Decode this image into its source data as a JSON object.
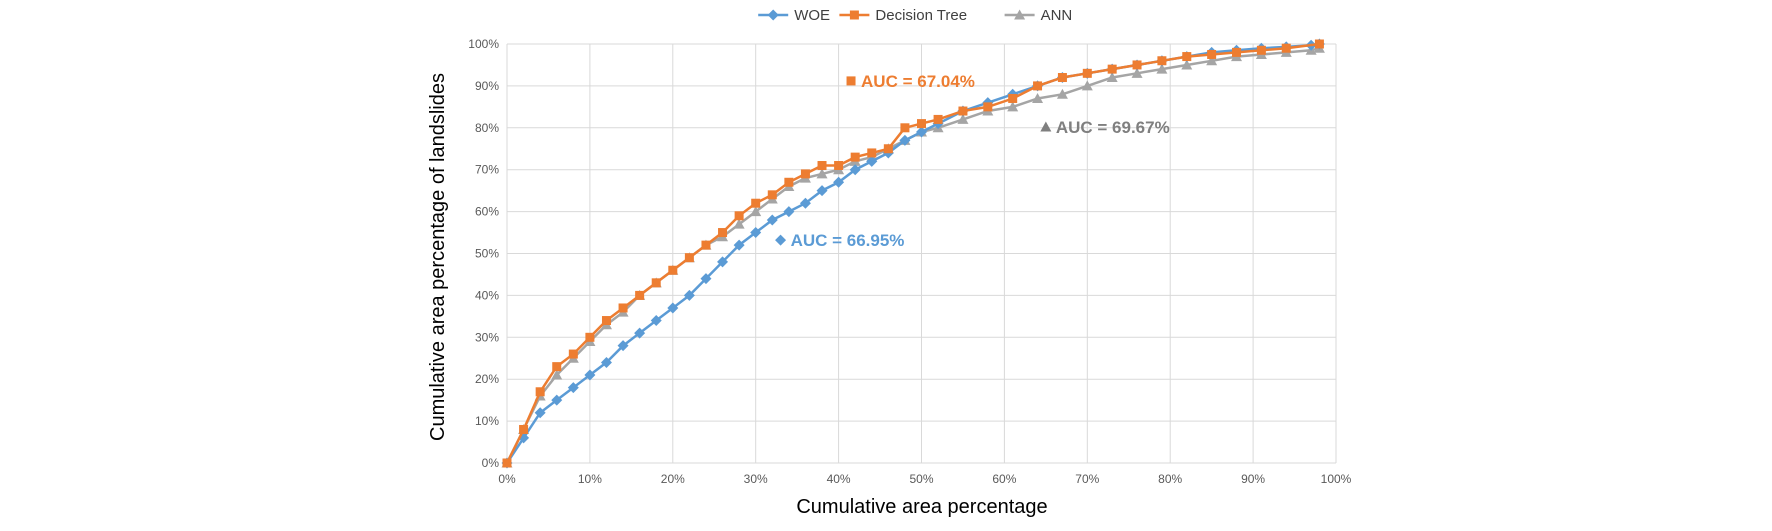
{
  "chart_data": {
    "type": "line",
    "title": "",
    "xlabel": "Cumulative area percentage",
    "ylabel": "Cumulative area percentage of landslides",
    "xlim": [
      0,
      100
    ],
    "ylim": [
      0,
      100
    ],
    "x_ticks": [
      "0%",
      "10%",
      "20%",
      "30%",
      "40%",
      "50%",
      "60%",
      "70%",
      "80%",
      "90%",
      "100%"
    ],
    "y_ticks": [
      "0%",
      "10%",
      "20%",
      "30%",
      "40%",
      "50%",
      "60%",
      "70%",
      "80%",
      "90%",
      "100%"
    ],
    "grid": true,
    "legend_position": "top",
    "series": [
      {
        "name": "WOE",
        "color": "#5b9bd5",
        "marker": "diamond",
        "x": [
          0,
          2,
          4,
          6,
          8,
          10,
          12,
          14,
          16,
          18,
          20,
          22,
          24,
          26,
          28,
          30,
          32,
          34,
          36,
          38,
          40,
          42,
          44,
          46,
          48,
          50,
          52,
          55,
          58,
          61,
          64,
          67,
          70,
          73,
          76,
          79,
          82,
          85,
          88,
          91,
          94,
          97,
          98
        ],
        "y": [
          0,
          6,
          12,
          15,
          18,
          21,
          24,
          28,
          31,
          34,
          37,
          40,
          44,
          48,
          52,
          55,
          58,
          60,
          62,
          65,
          67,
          70,
          72,
          74,
          77,
          79,
          81,
          84,
          86,
          88,
          90,
          92,
          93,
          94,
          95,
          96,
          97,
          98,
          98.5,
          99,
          99.3,
          99.7,
          100
        ]
      },
      {
        "name": "Decision Tree",
        "color": "#ed7d31",
        "marker": "square",
        "x": [
          0,
          2,
          4,
          6,
          8,
          10,
          12,
          14,
          16,
          18,
          20,
          22,
          24,
          26,
          28,
          30,
          32,
          34,
          36,
          38,
          40,
          42,
          44,
          46,
          48,
          50,
          52,
          55,
          58,
          61,
          64,
          67,
          70,
          73,
          76,
          79,
          82,
          85,
          88,
          91,
          94,
          98
        ],
        "y": [
          0,
          8,
          17,
          23,
          26,
          30,
          34,
          37,
          40,
          43,
          46,
          49,
          52,
          55,
          59,
          62,
          64,
          67,
          69,
          71,
          71,
          73,
          74,
          75,
          80,
          81,
          82,
          84,
          85,
          87,
          90,
          92,
          93,
          94,
          95,
          96,
          97,
          97.5,
          98,
          98.5,
          99,
          100
        ]
      },
      {
        "name": "ANN",
        "color": "#a5a5a5",
        "marker": "triangle",
        "x": [
          0,
          2,
          4,
          6,
          8,
          10,
          12,
          14,
          16,
          18,
          20,
          22,
          24,
          26,
          28,
          30,
          32,
          34,
          36,
          38,
          40,
          42,
          44,
          46,
          48,
          50,
          52,
          55,
          58,
          61,
          64,
          67,
          70,
          73,
          76,
          79,
          82,
          85,
          88,
          91,
          94,
          97,
          98
        ],
        "y": [
          0,
          8,
          16,
          21,
          25,
          29,
          33,
          36,
          40,
          43,
          46,
          49,
          52,
          54,
          57,
          60,
          63,
          66,
          68,
          69,
          70,
          72,
          73,
          75,
          77,
          79,
          80,
          82,
          84,
          85,
          87,
          88,
          90,
          92,
          93,
          94,
          95,
          96,
          97,
          97.5,
          98,
          98.5,
          99
        ]
      }
    ],
    "annotations": [
      {
        "text": "AUC = 67.04%",
        "color": "#ed7d31",
        "marker": "square",
        "x": 41.5,
        "y": 90
      },
      {
        "text": "AUC = 69.67%",
        "color": "#7f7f7f",
        "marker": "triangle",
        "x": 65,
        "y": 79
      },
      {
        "text": "AUC = 66.95%",
        "color": "#5b9bd5",
        "marker": "diamond",
        "x": 33,
        "y": 52
      }
    ]
  }
}
